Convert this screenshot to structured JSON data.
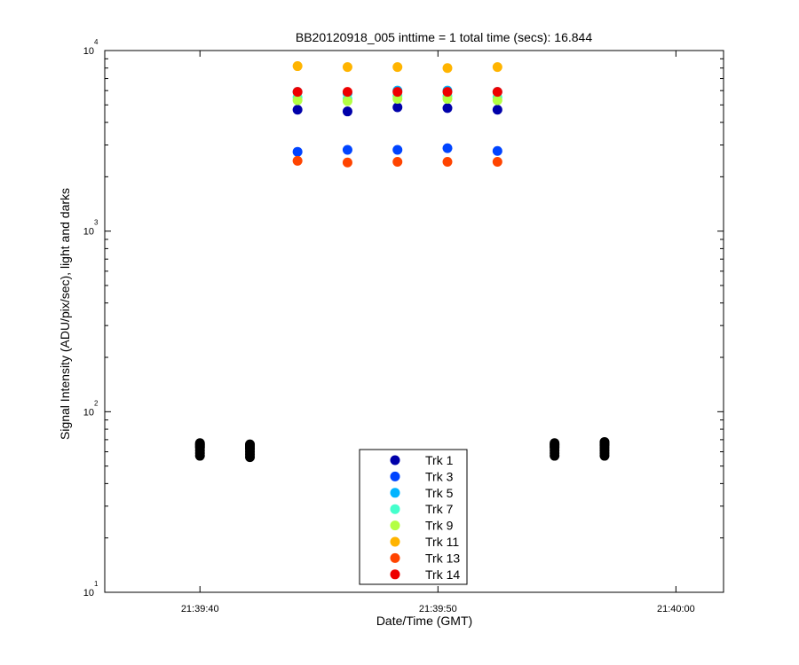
{
  "chart_data": {
    "type": "scatter",
    "title": "BB20120918_005 inttime = 1 total time (secs): 16.844",
    "xlabel": "Date/Time (GMT)",
    "ylabel": "Signal Intensity (ADU/pix/sec), light and darks",
    "y_scale": "log",
    "ylim": [
      10,
      10000
    ],
    "xlim": [
      "21:39:36",
      "21:40:02"
    ],
    "x_ticks": [
      "21:39:40",
      "21:39:50",
      "21:40:00"
    ],
    "y_ticks": [
      {
        "base": "10",
        "exp": "1"
      },
      {
        "base": "10",
        "exp": "2"
      },
      {
        "base": "10",
        "exp": "3"
      },
      {
        "base": "10",
        "exp": "4"
      }
    ],
    "grid": false,
    "legend_position": "bottom-center",
    "x_light": [
      "21:39:44.1",
      "21:39:46.2",
      "21:39:48.3",
      "21:39:50.4",
      "21:39:52.5"
    ],
    "x_dark": [
      "21:39:40.0",
      "21:39:42.1",
      "21:39:54.9",
      "21:39:57.0"
    ],
    "series": [
      {
        "name": "Trk 1",
        "color": "#0000aa",
        "values": [
          4700,
          4600,
          4850,
          4800,
          4700
        ]
      },
      {
        "name": "Trk 3",
        "color": "#0044ff",
        "values": [
          2750,
          2820,
          2820,
          2880,
          2780
        ]
      },
      {
        "name": "Trk 5",
        "color": "#00b4ff",
        "values": [
          5900,
          5800,
          6000,
          6000,
          5900
        ]
      },
      {
        "name": "Trk 7",
        "color": "#44ffcc",
        "values": [
          5500,
          5400,
          5600,
          5600,
          5500
        ]
      },
      {
        "name": "Trk 9",
        "color": "#b4ff44",
        "values": [
          5300,
          5250,
          5400,
          5400,
          5300
        ]
      },
      {
        "name": "Trk 11",
        "color": "#ffb400",
        "values": [
          8200,
          8100,
          8100,
          8000,
          8100
        ]
      },
      {
        "name": "Trk 13",
        "color": "#ff4400",
        "values": [
          2450,
          2400,
          2420,
          2420,
          2420
        ]
      },
      {
        "name": "Trk 14",
        "color": "#ee0000",
        "values": [
          5900,
          5900,
          5900,
          5900,
          5900
        ]
      }
    ],
    "darks": {
      "color": "#000000",
      "values": [
        [
          57,
          59,
          61,
          63,
          64,
          65,
          66,
          67
        ],
        [
          56,
          58,
          60,
          62,
          63,
          64,
          65,
          66
        ],
        [
          57,
          59,
          61,
          63,
          64,
          65,
          66,
          67
        ],
        [
          57,
          59,
          61,
          63,
          65,
          66,
          67,
          68
        ]
      ]
    }
  }
}
